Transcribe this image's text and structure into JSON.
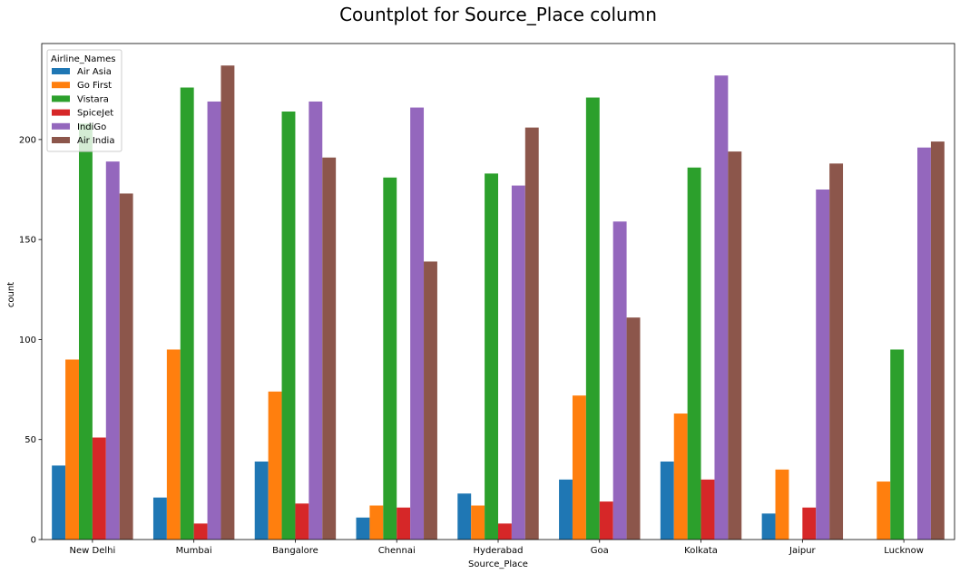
{
  "chart_data": {
    "type": "bar",
    "title": "Countplot for Source_Place column",
    "xlabel": "Source_Place",
    "ylabel": "count",
    "categories": [
      "New Delhi",
      "Mumbai",
      "Bangalore",
      "Chennai",
      "Hyderabad",
      "Goa",
      "Kolkata",
      "Jaipur",
      "Lucknow"
    ],
    "ylim": [
      0,
      248
    ],
    "yticks": [
      0,
      50,
      100,
      150,
      200
    ],
    "grid": false,
    "legend": {
      "title": "Airline_Names",
      "position": "top-left"
    },
    "series": [
      {
        "name": "Air Asia",
        "color": "#1f77b4",
        "values": [
          37,
          21,
          39,
          11,
          23,
          30,
          39,
          13,
          0
        ]
      },
      {
        "name": "Go First",
        "color": "#ff7f0e",
        "values": [
          90,
          95,
          74,
          17,
          17,
          72,
          63,
          35,
          29
        ]
      },
      {
        "name": "Vistara",
        "color": "#2ca02c",
        "values": [
          208,
          226,
          214,
          181,
          183,
          221,
          186,
          0,
          95
        ]
      },
      {
        "name": "SpiceJet",
        "color": "#d62728",
        "values": [
          51,
          8,
          18,
          16,
          8,
          19,
          30,
          16,
          0
        ]
      },
      {
        "name": "IndiGo",
        "color": "#9467bd",
        "values": [
          189,
          219,
          219,
          216,
          177,
          159,
          232,
          175,
          196
        ]
      },
      {
        "name": "Air India",
        "color": "#8c564b",
        "values": [
          173,
          237,
          191,
          139,
          206,
          111,
          194,
          188,
          199
        ]
      }
    ]
  }
}
